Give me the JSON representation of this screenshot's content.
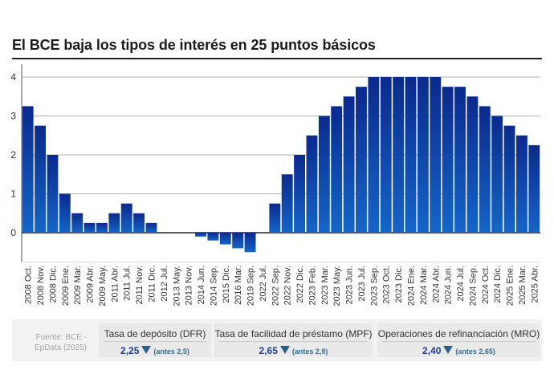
{
  "title": "El BCE baja los tipos de interés en 25 puntos básicos",
  "footer": {
    "source": "Fuente: BCE - EpData (2025)",
    "rates": [
      {
        "label": "Tasa de depósito (DFR)",
        "value": "2,25",
        "previous": "(antes 2,5)"
      },
      {
        "label": "Tasa de facilidad de préstamo (MPF)",
        "value": "2,65",
        "previous": "(antes 2,9)"
      },
      {
        "label": "Operaciones de refinanciación (MRO)",
        "value": "2,40",
        "previous": "(antes 2,65)"
      }
    ]
  },
  "colors": {
    "bar_top": "#0a2a8c",
    "bar_bottom": "#1565c8",
    "down_icon": "#2a5f86"
  },
  "chart_data": {
    "type": "bar",
    "title": "El BCE baja los tipos de interés en 25 puntos básicos",
    "xlabel": "",
    "ylabel": "",
    "ylim": [
      -0.75,
      4.25
    ],
    "yticks": [
      0,
      1,
      2,
      3,
      4
    ],
    "grid": true,
    "categories": [
      "2008 Oct.",
      "2008 Nov.",
      "2008 Dic.",
      "2009 Ene.",
      "2009 Mar.",
      "2009 Abr.",
      "2009 May.",
      "2011 Abr.",
      "2011 Jul.",
      "2011 Nov.",
      "2011 Dic.",
      "2012 Jul.",
      "2013 May.",
      "2013 Nov.",
      "2014 Jun.",
      "2014 Sep.",
      "2015 Dic.",
      "2016 Mar.",
      "2019 Sep.",
      "2022 Jul.",
      "2022 Sep.",
      "2022 Nov.",
      "2022 Dic.",
      "2023 Feb.",
      "2023 Mar.",
      "2023 May.",
      "2023 Jun.",
      "2023 Jul.",
      "2023 Sep.",
      "2023 Oct.",
      "2023 Dic.",
      "2024 Ene.",
      "2024 Mar.",
      "2024 Abr.",
      "2024 Jun.",
      "2024 Jul.",
      "2024 Sep.",
      "2024 Oct.",
      "2024 Dic.",
      "2025 Ene.",
      "2025 Mar.",
      "2025 Abr."
    ],
    "values": [
      3.25,
      2.75,
      2.0,
      1.0,
      0.5,
      0.25,
      0.25,
      0.5,
      0.75,
      0.5,
      0.25,
      0.0,
      0.0,
      0.0,
      -0.1,
      -0.2,
      -0.3,
      -0.4,
      -0.5,
      0.0,
      0.75,
      1.5,
      2.0,
      2.5,
      3.0,
      3.25,
      3.5,
      3.75,
      4.0,
      4.0,
      4.0,
      4.0,
      4.0,
      4.0,
      3.75,
      3.75,
      3.5,
      3.25,
      3.0,
      2.75,
      2.5,
      2.25
    ]
  }
}
